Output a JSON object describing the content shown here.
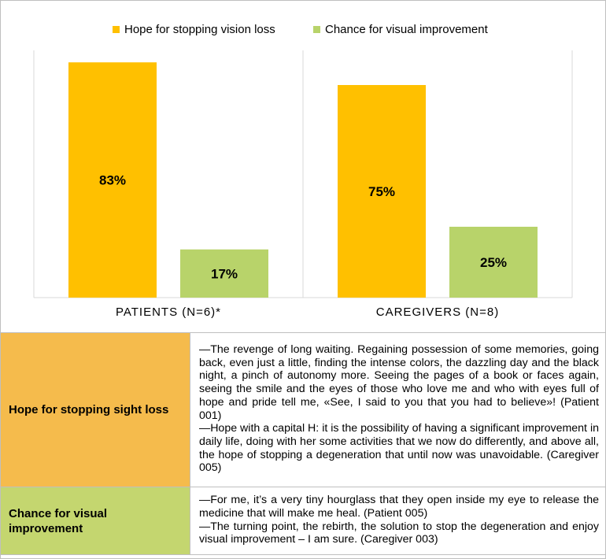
{
  "chart_data": {
    "type": "bar",
    "categories": [
      "PATIENTS (N=6)*",
      "CAREGIVERS (N=8)"
    ],
    "series": [
      {
        "name": "Hope for stopping vision loss",
        "color": "#FFC000",
        "values": [
          83,
          75
        ],
        "labels": [
          "83%",
          "75%"
        ]
      },
      {
        "name": "Chance for visual improvement",
        "color": "#B8D36A",
        "values": [
          17,
          25
        ],
        "labels": [
          "17%",
          "25%"
        ]
      }
    ],
    "ylim": [
      0,
      100
    ],
    "grid": false,
    "legend": "top-center"
  },
  "table": {
    "rows": [
      {
        "category": "Hope for stopping sight loss",
        "color": "#F5BB4C",
        "quotes": [
          "—The revenge of long waiting. Regaining possession of some memories, going back, even just a little, finding the intense colors, the dazzling day and the black night, a pinch of autonomy more. Seeing the pages of a book or faces again, seeing the smile and the eyes of those who love me and who with eyes full of hope and pride tell me, «See, I said to you that you had to believe»! (Patient 001)",
          "—Hope with a capital H: it is the possibility of having a significant improvement in daily life, doing with her some activities that we now do differently, and above all, the hope of stopping a degeneration that until now was unavoidable. (Caregiver 005)"
        ]
      },
      {
        "category": "Chance for visual improvement",
        "color": "#C4D66F",
        "quotes": [
          "—For me, it’s a very tiny hourglass that they open inside my eye to release the medicine that will make me heal. (Patient 005)",
          "—The turning point, the rebirth, the solution to stop the degeneration and enjoy visual improvement – I am sure. (Caregiver 003)"
        ]
      }
    ]
  }
}
